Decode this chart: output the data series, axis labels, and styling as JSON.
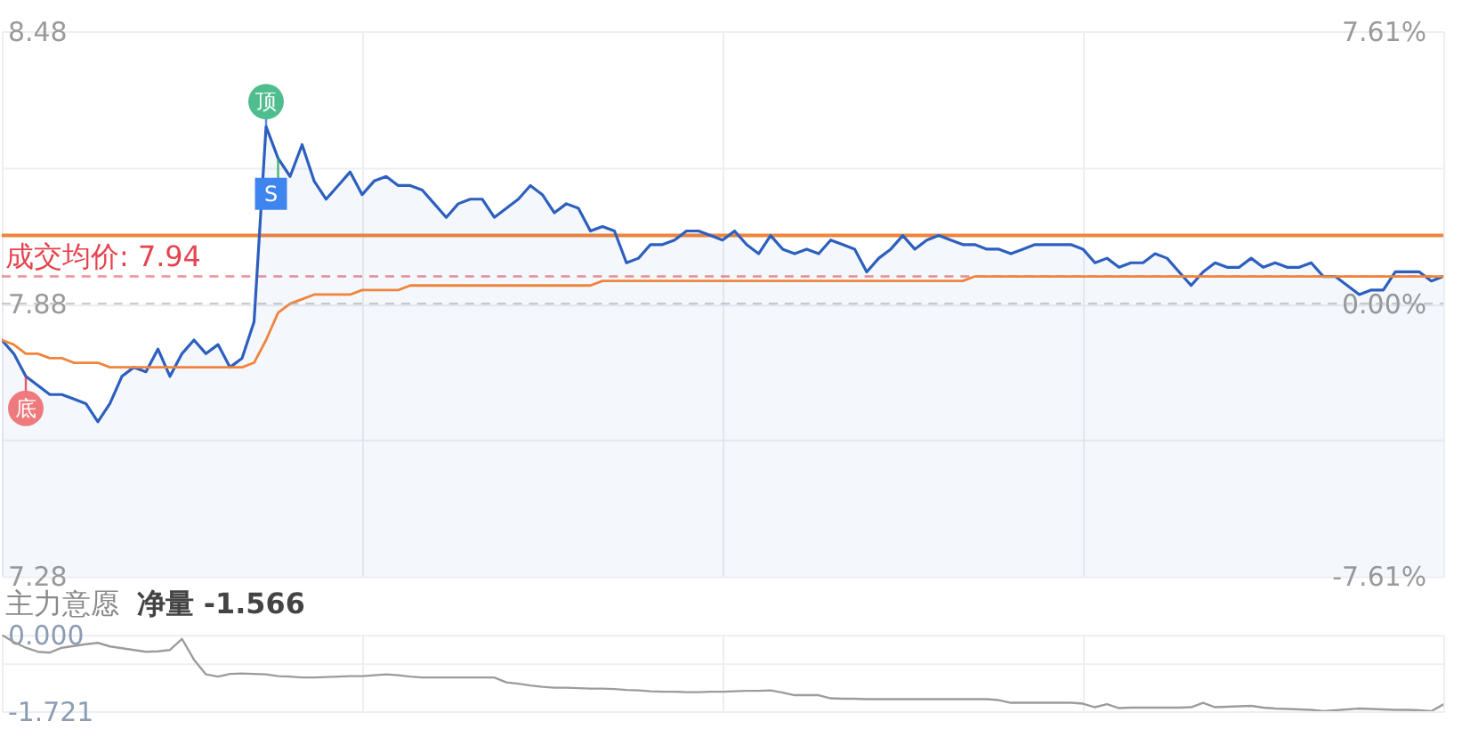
{
  "chart_data": [
    {
      "type": "area",
      "categories": [
        null,
        null,
        null,
        null,
        null,
        null,
        null,
        null,
        null,
        null,
        null,
        null,
        null,
        null,
        null,
        null,
        null,
        null,
        null,
        null,
        null,
        null,
        null,
        null,
        null,
        null,
        null,
        null,
        null,
        null,
        null,
        null,
        null,
        null,
        null,
        null,
        null,
        null,
        null,
        null,
        null,
        null,
        null,
        null,
        null,
        null,
        null,
        null,
        null,
        null,
        null,
        null,
        null,
        null,
        null,
        null,
        null,
        null,
        null,
        null,
        null,
        null,
        null,
        null,
        null,
        null,
        null,
        null,
        null,
        null,
        null,
        null,
        null,
        null,
        null,
        null,
        null,
        null,
        null,
        null,
        null,
        null,
        null,
        null,
        null,
        null,
        null,
        null,
        null,
        null,
        null,
        null,
        null,
        null,
        null,
        null,
        null,
        null,
        null,
        null,
        null,
        null,
        null,
        null,
        null,
        null,
        null,
        null,
        null,
        null,
        null,
        null,
        null,
        null,
        null,
        null,
        null,
        null,
        null,
        null,
        null
      ],
      "ylim": [
        7.28,
        8.48
      ],
      "yticks": [
        8.48,
        {
          "value": 8.18,
          "label": null
        },
        7.88,
        {
          "value": 7.58,
          "label": null
        },
        7.28
      ],
      "y2lim": [
        -7.61,
        7.61
      ],
      "y2ticks": [
        {
          "value": 7.61,
          "label": "7.61%"
        },
        {
          "value": 0,
          "label": "0.00%"
        },
        {
          "value": -7.61,
          "label": "-7.61%"
        }
      ],
      "grid": true,
      "tick_labels": "y",
      "series": [
        {
          "color": "#2c5fbe",
          "values": [
            7.8,
            7.77,
            7.72,
            7.7,
            7.68,
            7.68,
            7.67,
            7.66,
            7.62,
            7.66,
            7.72,
            7.74,
            7.73,
            7.78,
            7.72,
            7.77,
            7.8,
            7.77,
            7.79,
            7.74,
            7.76,
            7.84,
            8.27,
            8.2,
            8.16,
            8.23,
            8.15,
            8.11,
            8.14,
            8.17,
            8.12,
            8.15,
            8.16,
            8.14,
            8.14,
            8.13,
            8.1,
            8.07,
            8.1,
            8.11,
            8.11,
            8.07,
            8.09,
            8.11,
            8.14,
            8.12,
            8.08,
            8.1,
            8.09,
            8.04,
            8.05,
            8.04,
            7.97,
            7.98,
            8.01,
            8.01,
            8.02,
            8.04,
            8.04,
            8.03,
            8.02,
            8.04,
            8.01,
            7.99,
            8.03,
            8.0,
            7.99,
            8.0,
            7.99,
            8.02,
            8.01,
            8.0,
            7.95,
            7.98,
            8.0,
            8.03,
            8.0,
            8.02,
            8.03,
            8.02,
            8.01,
            8.01,
            8.0,
            8.0,
            7.99,
            8.0,
            8.01,
            8.01,
            8.01,
            8.01,
            8.0,
            7.97,
            7.98,
            7.96,
            7.97,
            7.97,
            7.99,
            7.98,
            7.95,
            7.92,
            7.95,
            7.97,
            7.96,
            7.96,
            7.98,
            7.96,
            7.97,
            7.96,
            7.96,
            7.97,
            7.94,
            7.94,
            7.92,
            7.9,
            7.91,
            7.91,
            7.95,
            7.95,
            7.95,
            7.93,
            7.94
          ]
        },
        {
          "type": "line",
          "color": "#f0843c",
          "values": [
            7.8,
            7.79,
            7.77,
            7.77,
            7.76,
            7.76,
            7.75,
            7.75,
            7.75,
            7.74,
            7.74,
            7.74,
            7.74,
            7.74,
            7.74,
            7.74,
            7.74,
            7.74,
            7.74,
            7.74,
            7.74,
            7.75,
            7.8,
            7.86,
            7.88,
            7.89,
            7.9,
            7.9,
            7.9,
            7.9,
            7.91,
            7.91,
            7.91,
            7.91,
            7.92,
            7.92,
            7.92,
            7.92,
            7.92,
            7.92,
            7.92,
            7.92,
            7.92,
            7.92,
            7.92,
            7.92,
            7.92,
            7.92,
            7.92,
            7.92,
            7.93,
            7.93,
            7.93,
            7.93,
            7.93,
            7.93,
            7.93,
            7.93,
            7.93,
            7.93,
            7.93,
            7.93,
            7.93,
            7.93,
            7.93,
            7.93,
            7.93,
            7.93,
            7.93,
            7.93,
            7.93,
            7.93,
            7.93,
            7.93,
            7.93,
            7.93,
            7.93,
            7.93,
            7.93,
            7.93,
            7.93,
            7.94,
            7.94,
            7.94,
            7.94,
            7.94,
            7.94,
            7.94,
            7.94,
            7.94,
            7.94,
            7.94,
            7.94,
            7.94,
            7.94,
            7.94,
            7.94,
            7.94,
            7.94,
            7.94,
            7.94,
            7.94,
            7.94,
            7.94,
            7.94,
            7.94,
            7.94,
            7.94,
            7.94,
            7.94,
            7.94,
            7.94,
            7.94,
            7.94,
            7.94,
            7.94,
            7.94,
            7.94,
            7.94,
            7.94,
            7.94
          ]
        }
      ],
      "ref_lines": [
        {
          "axis": "y",
          "value": 8.03,
          "color": "#f0843c",
          "line_style": "solid"
        },
        {
          "axis": "y",
          "value": 7.94,
          "label": "成交均价: 7.94",
          "color": "#e5434d",
          "line_style": "dashed"
        },
        {
          "axis": "y2",
          "value": 0,
          "color": "#a8a8a8",
          "line_style": "dashed"
        }
      ],
      "annotations": [
        {
          "text": "顶",
          "y": 8.27
        },
        {
          "text": "S",
          "y": 8.2
        },
        {
          "text": "底",
          "y": 7.72
        }
      ]
    },
    {
      "type": "line",
      "title": "主力意愿",
      "annotations": [
        "净量 -1.566"
      ],
      "color": "#9c9c9c",
      "categories": [
        null,
        null,
        null,
        null,
        null,
        null,
        null,
        null,
        null,
        null,
        null,
        null,
        null,
        null,
        null,
        null,
        null,
        null,
        null,
        null,
        null,
        null,
        null,
        null,
        null,
        null,
        null,
        null,
        null,
        null,
        null,
        null,
        null,
        null,
        null,
        null,
        null,
        null,
        null,
        null,
        null,
        null,
        null,
        null,
        null,
        null,
        null,
        null,
        null,
        null,
        null,
        null,
        null,
        null,
        null,
        null,
        null,
        null,
        null,
        null,
        null,
        null,
        null,
        null,
        null,
        null,
        null,
        null,
        null,
        null,
        null,
        null,
        null,
        null,
        null,
        null,
        null,
        null,
        null,
        null,
        null,
        null,
        null,
        null,
        null,
        null,
        null,
        null,
        null,
        null,
        null,
        null,
        null,
        null,
        null,
        null,
        null,
        null,
        null,
        null,
        null,
        null,
        null,
        null,
        null,
        null,
        null,
        null,
        null,
        null,
        null,
        null,
        null,
        null,
        null,
        null,
        null,
        null,
        null,
        null,
        null
      ],
      "values": [
        0,
        -0.16,
        -0.29,
        -0.38,
        -0.4,
        -0.29,
        -0.25,
        -0.21,
        -0.18,
        -0.26,
        -0.3,
        -0.34,
        -0.38,
        -0.37,
        -0.34,
        -0.09,
        -0.56,
        -0.89,
        -0.94,
        -0.88,
        -0.87,
        -0.88,
        -0.89,
        -0.93,
        -0.94,
        -0.96,
        -0.96,
        -0.95,
        -0.94,
        -0.93,
        -0.93,
        -0.91,
        -0.89,
        -0.91,
        -0.94,
        -0.96,
        -0.96,
        -0.96,
        -0.96,
        -0.96,
        -0.96,
        -0.96,
        -1.07,
        -1.1,
        -1.14,
        -1.17,
        -1.19,
        -1.19,
        -1.2,
        -1.21,
        -1.21,
        -1.22,
        -1.24,
        -1.25,
        -1.27,
        -1.28,
        -1.28,
        -1.29,
        -1.29,
        -1.28,
        -1.28,
        -1.27,
        -1.26,
        -1.26,
        -1.25,
        -1.3,
        -1.36,
        -1.36,
        -1.36,
        -1.43,
        -1.44,
        -1.44,
        -1.45,
        -1.45,
        -1.45,
        -1.45,
        -1.45,
        -1.45,
        -1.45,
        -1.45,
        -1.45,
        -1.45,
        -1.45,
        -1.47,
        -1.53,
        -1.53,
        -1.53,
        -1.53,
        -1.53,
        -1.53,
        -1.55,
        -1.63,
        -1.56,
        -1.65,
        -1.64,
        -1.64,
        -1.64,
        -1.64,
        -1.64,
        -1.63,
        -1.53,
        -1.63,
        -1.62,
        -1.61,
        -1.6,
        -1.64,
        -1.66,
        -1.67,
        -1.68,
        -1.69,
        -1.72,
        -1.7,
        -1.68,
        -1.66,
        -1.67,
        -1.68,
        -1.69,
        -1.69,
        -1.7,
        -1.72,
        -1.566
      ],
      "ylim": [
        -1.721,
        0
      ],
      "yticks": [
        {
          "value": 0,
          "label": "0.000"
        },
        {
          "value": -0.65,
          "label": null
        },
        -1.721
      ],
      "grid": true,
      "tick_labels": "y"
    }
  ]
}
